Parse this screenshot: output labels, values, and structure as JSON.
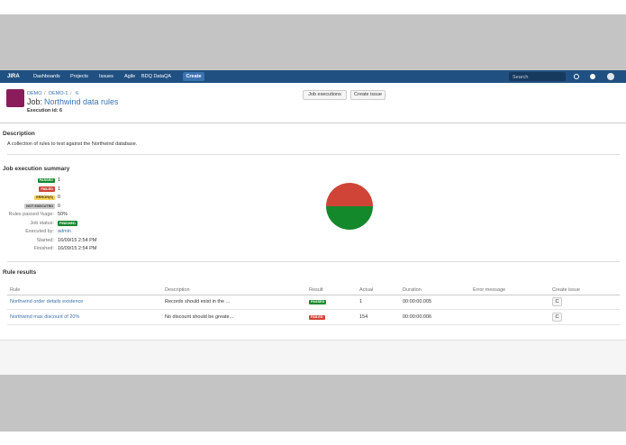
{
  "nav": {
    "logo": "JIRA",
    "menus": [
      "Dashboards",
      "Projects",
      "Issues",
      "Agile",
      "BDQ DataQA"
    ],
    "create": "Create",
    "search_placeholder": "Search"
  },
  "header": {
    "breadcrumbs": [
      "DEMO",
      "DEMO-1",
      "6"
    ],
    "job_label": "Job:",
    "job_name": "Northwind data rules",
    "execution_id": "Execution id: 6",
    "buttons": [
      "Job executions",
      "Create issue"
    ]
  },
  "description": {
    "title": "Description",
    "text": "A collection of rules to test against the Northwind database."
  },
  "summary": {
    "title": "Job execution summary",
    "counts": [
      {
        "label": "PASSED",
        "value": 1,
        "color": "#14892c"
      },
      {
        "label": "FAILED",
        "value": 1,
        "color": "#d04437"
      },
      {
        "label": "ERROR(S)",
        "value": 0,
        "color": "#ffd351"
      },
      {
        "label": "NOT EXECUTED",
        "value": 0,
        "color": "#cccccc"
      }
    ],
    "fields": [
      {
        "label": "Rules passed %age:",
        "value": "50%"
      },
      {
        "label": "Job status:",
        "value": "FINISHED"
      },
      {
        "label": "Executed by:",
        "value": "admin"
      },
      {
        "label": "Started:",
        "value": "16/09/15 2:54 PM"
      },
      {
        "label": "Finished:",
        "value": "16/09/15 2:54 PM"
      }
    ]
  },
  "rule_results": {
    "title": "Rule results",
    "columns": [
      "Rule",
      "Description",
      "Result",
      "Actual",
      "Duration",
      "Error message",
      "Create issue"
    ],
    "rows": [
      {
        "rule": "Northwind order details existence",
        "description": "Records should exist in the ...",
        "result": "PASSED",
        "actual": 1,
        "duration": "00:00:00.005",
        "create": "C"
      },
      {
        "rule": "Northwind max discount of 20%",
        "description": "No discount should be greate...",
        "result": "FAILED",
        "actual": 154,
        "duration": "00:00:00.006",
        "create": "C"
      }
    ]
  }
}
